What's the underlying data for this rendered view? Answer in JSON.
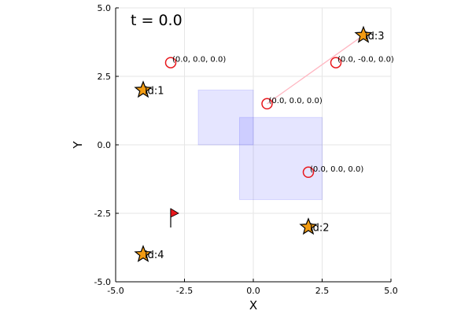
{
  "chart_data": {
    "type": "scatter",
    "title": "t = 0.0",
    "xlabel": "X",
    "ylabel": "Y",
    "xlim": [
      -5,
      5
    ],
    "ylim": [
      -5,
      5
    ],
    "xticks": [
      -5,
      -2.5,
      0,
      2.5,
      5
    ],
    "yticks": [
      -5,
      -2.5,
      0,
      2.5,
      5
    ],
    "xtick_labels": [
      "-5.0",
      "-2.5",
      "0.0",
      "2.5",
      "5.0"
    ],
    "ytick_labels": [
      "-5.0",
      "-2.5",
      "0.0",
      "2.5",
      "5.0"
    ],
    "grid": true,
    "obstacles": [
      {
        "xmin": -2.0,
        "xmax": 0.0,
        "ymin": 0.0,
        "ymax": 2.0
      },
      {
        "xmin": -0.5,
        "xmax": 2.5,
        "ymin": -2.0,
        "ymax": 1.0
      }
    ],
    "agents": [
      {
        "x": -3.0,
        "y": 3.0,
        "label": "(0.0, 0.0, 0.0)"
      },
      {
        "x": 3.0,
        "y": 3.0,
        "label": "(0.0, -0.0, 0.0)"
      },
      {
        "x": 0.5,
        "y": 1.5,
        "label": "(0.0, 0.0, 0.0)"
      },
      {
        "x": 2.0,
        "y": -1.0,
        "label": "(0.0, 0.0, 0.0)"
      }
    ],
    "goals": [
      {
        "x": -4.0,
        "y": 2.0,
        "label": "id:1"
      },
      {
        "x": 2.0,
        "y": -3.0,
        "label": "id:2"
      },
      {
        "x": 4.0,
        "y": 4.0,
        "label": "id:3"
      },
      {
        "x": -4.0,
        "y": -4.0,
        "label": "id:4"
      }
    ],
    "links": [
      {
        "x1": 0.5,
        "y1": 1.5,
        "x2": 4.0,
        "y2": 4.0
      }
    ],
    "flag": {
      "x": -3.0,
      "y": -2.5
    },
    "colors": {
      "agent": "#e8161b",
      "goal_fill": "#f39c12",
      "goal_stroke": "#000000",
      "obstacle": "#0000ff",
      "link": "#ffb6c1",
      "flag": "#e8161b",
      "grid": "#e6e6e6"
    }
  }
}
